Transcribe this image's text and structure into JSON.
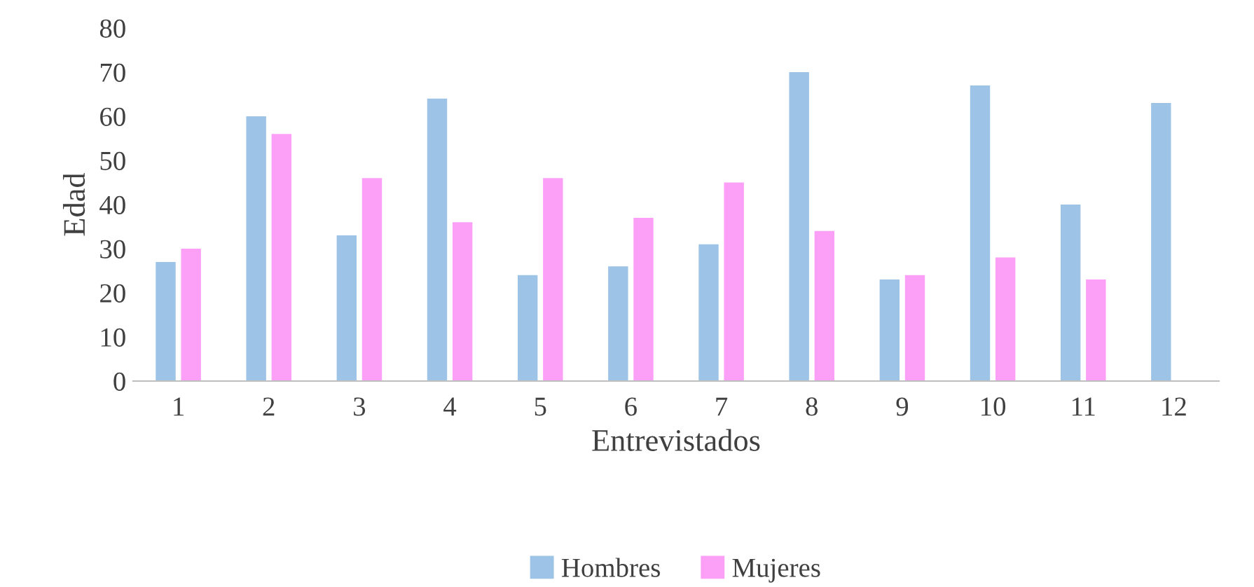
{
  "chart_data": {
    "type": "bar",
    "xlabel": "Entrevistados",
    "ylabel": "Edad",
    "categories": [
      "1",
      "2",
      "3",
      "4",
      "5",
      "6",
      "7",
      "8",
      "9",
      "10",
      "11",
      "12"
    ],
    "series": [
      {
        "name": "Hombres",
        "color": "#9dc3e6",
        "values": [
          27,
          60,
          33,
          64,
          24,
          26,
          31,
          70,
          23,
          67,
          40,
          63
        ]
      },
      {
        "name": "Mujeres",
        "color": "#fca0f7",
        "values": [
          30,
          56,
          46,
          36,
          46,
          37,
          45,
          34,
          24,
          28,
          23,
          null
        ]
      }
    ],
    "ylim": [
      0,
      80
    ],
    "yticks": [
      0,
      10,
      20,
      30,
      40,
      50,
      60,
      70,
      80
    ],
    "grid": false,
    "legend": "bottom"
  }
}
